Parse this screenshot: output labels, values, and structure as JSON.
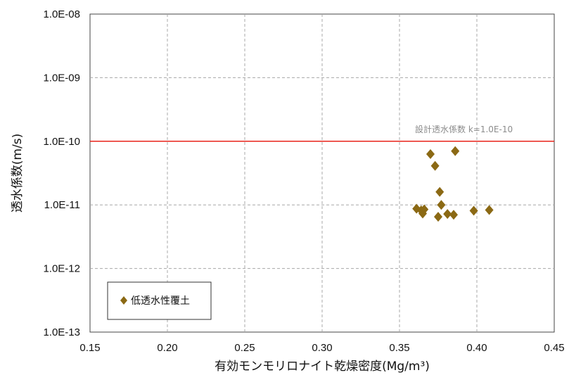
{
  "chart_data": {
    "type": "scatter",
    "title": "",
    "xlabel": "有効モンモリロナイト乾燥密度(Mg/m³)",
    "ylabel": "透水係数(m/s)",
    "xlim": [
      0.15,
      0.45
    ],
    "ylim_log10": [
      -13,
      -8
    ],
    "y_scale": "log",
    "grid": true,
    "x_ticks": [
      "0.15",
      "0.20",
      "0.25",
      "0.30",
      "0.35",
      "0.40",
      "0.45"
    ],
    "y_ticks": [
      "1.0E-13",
      "1.0E-12",
      "1.0E-11",
      "1.0E-10",
      "1.0E-09",
      "1.0E-08"
    ],
    "reference_line": {
      "value": 1e-10,
      "label": "設計透水係数  k=1.0E-10",
      "color": "#e8231a"
    },
    "legend": {
      "placement": "bottom-left",
      "entries": [
        "低透水性覆土"
      ]
    },
    "series": [
      {
        "name": "低透水性覆土",
        "marker": "diamond",
        "color": "#8b6914",
        "points": [
          [
            0.361,
            8.7e-12
          ],
          [
            0.364,
            8.2e-12
          ],
          [
            0.365,
            7.3e-12
          ],
          [
            0.366,
            8.5e-12
          ],
          [
            0.37,
            6.3e-11
          ],
          [
            0.373,
            4.1e-11
          ],
          [
            0.375,
            6.5e-12
          ],
          [
            0.376,
            1.6e-11
          ],
          [
            0.377,
            1e-11
          ],
          [
            0.381,
            7.2e-12
          ],
          [
            0.385,
            7e-12
          ],
          [
            0.386,
            7e-11
          ],
          [
            0.398,
            8.1e-12
          ],
          [
            0.408,
            8.3e-12
          ]
        ]
      }
    ]
  }
}
